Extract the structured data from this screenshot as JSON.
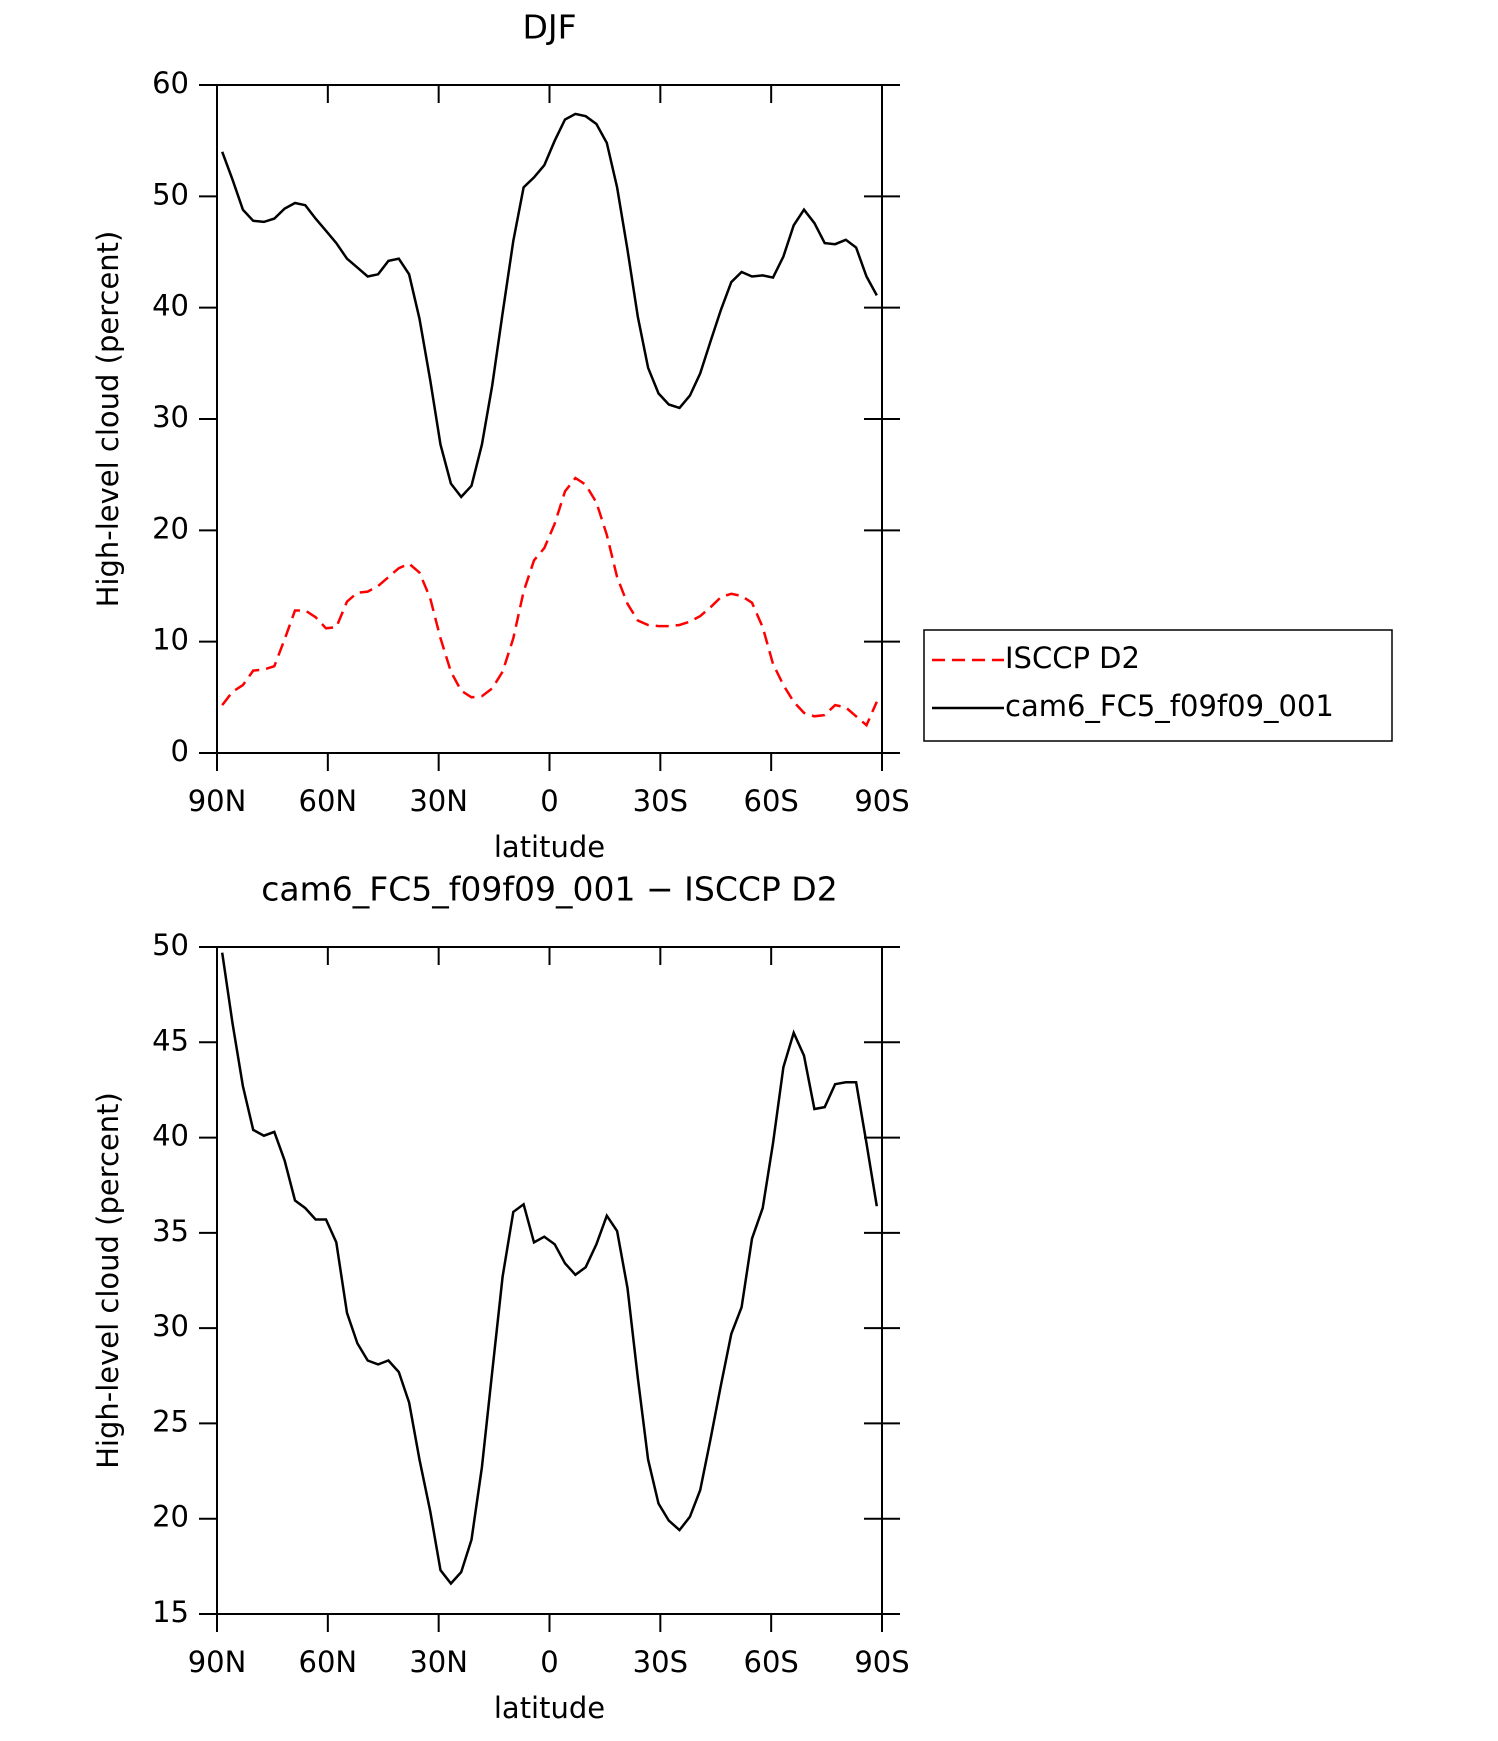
{
  "chart_data": [
    {
      "type": "line",
      "title": "DJF",
      "xlabel": "latitude",
      "ylabel": "High-level cloud (percent)",
      "x": [
        88.6,
        85.8,
        83.0,
        80.2,
        77.3,
        74.5,
        71.7,
        68.9,
        66.1,
        63.3,
        60.5,
        57.7,
        54.8,
        52.0,
        49.2,
        46.4,
        43.6,
        40.8,
        38.0,
        35.2,
        32.3,
        29.5,
        26.7,
        23.9,
        21.1,
        18.3,
        15.5,
        12.7,
        9.8,
        7.0,
        4.2,
        1.4,
        -1.4,
        -4.2,
        -7.0,
        -9.8,
        -12.7,
        -15.5,
        -18.3,
        -21.1,
        -23.9,
        -26.7,
        -29.5,
        -32.3,
        -35.2,
        -38.0,
        -40.8,
        -43.6,
        -46.4,
        -49.2,
        -52.0,
        -54.8,
        -57.7,
        -60.5,
        -63.3,
        -66.1,
        -68.9,
        -71.7,
        -74.5,
        -77.3,
        -80.2,
        -83.0,
        -85.8,
        -88.6
      ],
      "series": [
        {
          "name": "ISCCP D2",
          "color": "#ff0000",
          "dashed": true,
          "values": [
            4.3,
            5.5,
            6.1,
            7.4,
            7.5,
            7.8,
            10.2,
            12.8,
            12.8,
            12.2,
            11.2,
            11.3,
            13.6,
            14.4,
            14.5,
            15,
            15.8,
            16.6,
            17,
            16.2,
            13.9,
            10.3,
            7.3,
            5.6,
            5,
            5.1,
            5.8,
            7.3,
            10.3,
            14.5,
            17.3,
            18.4,
            20.6,
            23.5,
            24.7,
            24.1,
            22.5,
            19.6,
            15.8,
            13.4,
            11.9,
            11.5,
            11.4,
            11.4,
            11.5,
            11.8,
            12.3,
            13.1,
            14,
            14.3,
            14.1,
            13.5,
            11.3,
            8,
            6.1,
            4.6,
            3.6,
            3.3,
            3.4,
            4.3,
            4.1,
            3.3,
            2.5,
            4.6
          ]
        },
        {
          "name": "cam6_FC5_f09f09_001",
          "color": "#000000",
          "dashed": false,
          "values": [
            54,
            51.5,
            48.8,
            47.8,
            47.7,
            48,
            48.9,
            49.4,
            49.2,
            48,
            46.9,
            45.8,
            44.4,
            43.6,
            42.8,
            43,
            44.2,
            44.4,
            43,
            39,
            33.5,
            27.7,
            24.2,
            23,
            24,
            27.7,
            33,
            39.5,
            46,
            50.8,
            51.7,
            52.8,
            55,
            56.9,
            57.4,
            57.2,
            56.5,
            54.8,
            50.8,
            45.2,
            39.2,
            34.6,
            32.3,
            31.3,
            31,
            32.1,
            34.1,
            37,
            39.8,
            42.3,
            43.2,
            42.8,
            42.9,
            42.7,
            44.6,
            47.4,
            48.8,
            47.6,
            45.8,
            45.7,
            46.1,
            45.4,
            42.8,
            41.1
          ]
        }
      ],
      "xlim": [
        90,
        -90
      ],
      "xticks": [
        {
          "value": 90,
          "label": "90N"
        },
        {
          "value": 60,
          "label": "60N"
        },
        {
          "value": 30,
          "label": "30N"
        },
        0,
        {
          "value": -30,
          "label": "30S"
        },
        {
          "value": -60,
          "label": "60S"
        },
        {
          "value": -90,
          "label": "90S"
        }
      ],
      "ylim": [
        0,
        60
      ],
      "yticks": [
        0,
        10,
        20,
        30,
        40,
        50,
        60
      ],
      "legend": "right"
    },
    {
      "type": "line",
      "title": "cam6_FC5_f09f09_001 − ISCCP D2",
      "xlabel": "latitude",
      "ylabel": "High-level cloud (percent)",
      "x": [
        88.6,
        85.8,
        83.0,
        80.2,
        77.3,
        74.5,
        71.7,
        68.9,
        66.1,
        63.3,
        60.5,
        57.7,
        54.8,
        52.0,
        49.2,
        46.4,
        43.6,
        40.8,
        38.0,
        35.2,
        32.3,
        29.5,
        26.7,
        23.9,
        21.1,
        18.3,
        15.5,
        12.7,
        9.8,
        7.0,
        4.2,
        1.4,
        -1.4,
        -4.2,
        -7.0,
        -9.8,
        -12.7,
        -15.5,
        -18.3,
        -21.1,
        -23.9,
        -26.7,
        -29.5,
        -32.3,
        -35.2,
        -38.0,
        -40.8,
        -43.6,
        -46.4,
        -49.2,
        -52.0,
        -54.8,
        -57.7,
        -60.5,
        -63.3,
        -66.1,
        -68.9,
        -71.7,
        -74.5,
        -77.3,
        -80.2,
        -83.0,
        -85.8,
        -88.6
      ],
      "series": [
        {
          "color": "#000000",
          "dashed": false,
          "values": [
            49.7,
            46.0,
            42.7,
            40.4,
            40.1,
            40.3,
            38.8,
            36.7,
            36.3,
            35.7,
            35.7,
            34.5,
            30.8,
            29.2,
            28.3,
            28.1,
            28.3,
            27.7,
            26.1,
            23.1,
            20.4,
            17.3,
            16.6,
            17.2,
            18.9,
            22.7,
            27.7,
            32.7,
            36.1,
            36.5,
            34.5,
            34.8,
            34.4,
            33.4,
            32.8,
            33.2,
            34.4,
            35.9,
            35.1,
            32.1,
            27.4,
            23.1,
            20.8,
            19.9,
            19.4,
            20.1,
            21.5,
            24.2,
            27.0,
            29.7,
            31.1,
            34.7,
            36.3,
            39.7,
            43.7,
            45.5,
            44.3,
            41.5,
            41.6,
            42.8,
            42.9,
            42.9,
            39.7,
            36.4
          ]
        }
      ],
      "xlim": [
        90,
        -90
      ],
      "xticks": [
        {
          "value": 90,
          "label": "90N"
        },
        {
          "value": 60,
          "label": "60N"
        },
        {
          "value": 30,
          "label": "30N"
        },
        0,
        {
          "value": -30,
          "label": "30S"
        },
        {
          "value": -60,
          "label": "60S"
        },
        {
          "value": -90,
          "label": "90S"
        }
      ],
      "ylim": [
        15,
        50
      ],
      "yticks": [
        15,
        20,
        25,
        30,
        35,
        40,
        45,
        50
      ]
    }
  ]
}
